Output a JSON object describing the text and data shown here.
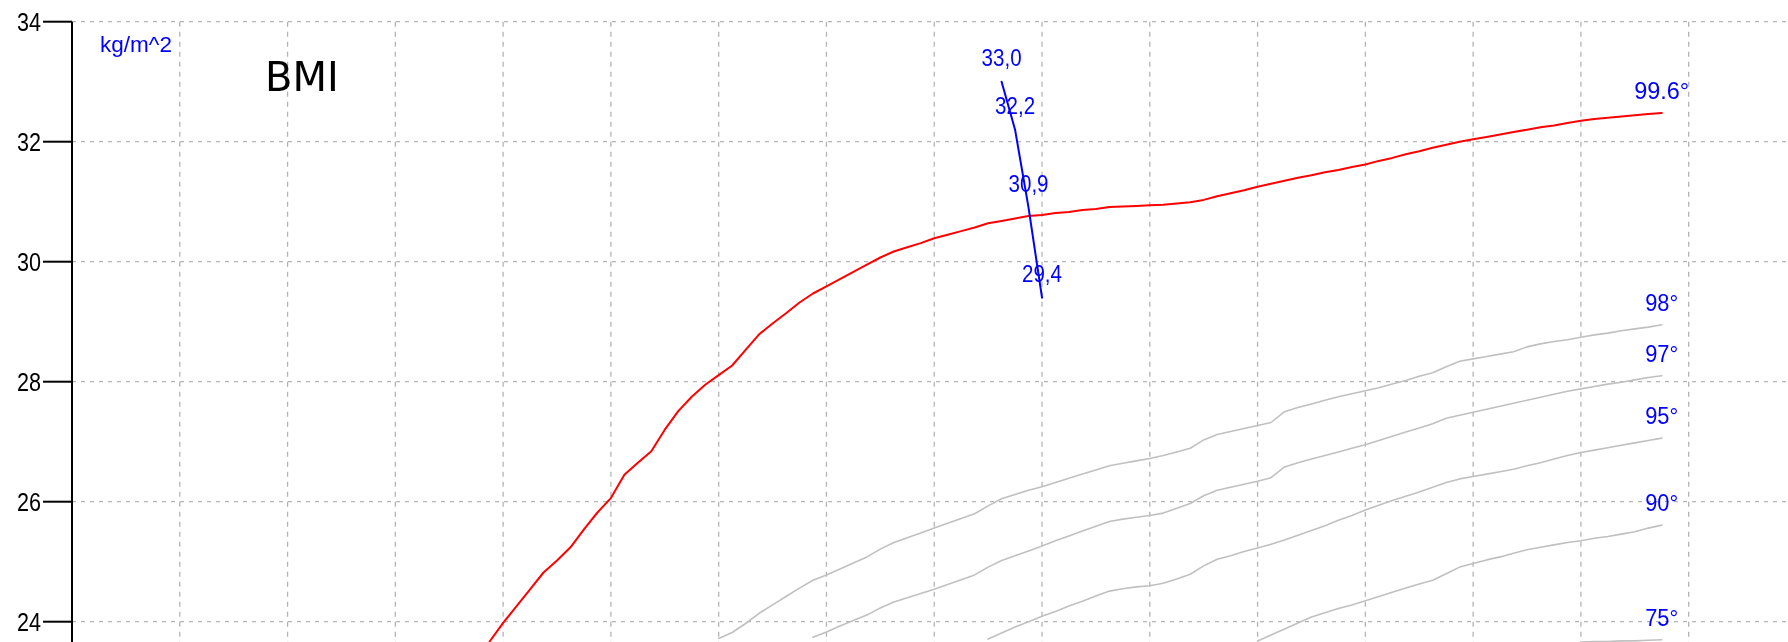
{
  "chart_data": {
    "type": "line",
    "title": "BMI",
    "ylabel": "kg/m^2",
    "ylim": [
      23.65,
      34
    ],
    "yticks": [
      24,
      26,
      28,
      30,
      32,
      34
    ],
    "grid": true,
    "marker": "none",
    "line_style": "solid",
    "categories": [
      null,
      null,
      null,
      null,
      null,
      null,
      null,
      null,
      null,
      null,
      null,
      null,
      null,
      null,
      null,
      null,
      null,
      null,
      null,
      null,
      null,
      null,
      null,
      null,
      null,
      null,
      null,
      null,
      null,
      null,
      null,
      null,
      null,
      null,
      null,
      null,
      null,
      null,
      null,
      null,
      null,
      null,
      null,
      null,
      null,
      null,
      null,
      null,
      null,
      null,
      null,
      null,
      null,
      null,
      null,
      null,
      null,
      null,
      null,
      null,
      null,
      null,
      null,
      null,
      null,
      null,
      null,
      null,
      null,
      null,
      null,
      null,
      null,
      null,
      null,
      null,
      null,
      null,
      null,
      null,
      null,
      null,
      null,
      null,
      null,
      null,
      null,
      null,
      null,
      null,
      null,
      null,
      null,
      null,
      null,
      null,
      null,
      null,
      null,
      null,
      null,
      null,
      null,
      null,
      null,
      null,
      null,
      null,
      null,
      null,
      null,
      null,
      null,
      null,
      null,
      null,
      null,
      null,
      null,
      null,
      null,
      null,
      null,
      null,
      null,
      null,
      null,
      null
    ],
    "series": [
      {
        "name": "99.6°",
        "color": "#ff0000",
        "values": [
          null,
          null,
          null,
          null,
          null,
          null,
          null,
          null,
          null,
          null,
          null,
          null,
          null,
          null,
          null,
          null,
          null,
          null,
          null,
          null,
          null,
          null,
          null,
          null,
          null,
          null,
          null,
          null,
          null,
          null,
          null,
          23.67,
          23.98,
          24.26,
          24.54,
          24.82,
          25.02,
          25.24,
          25.54,
          25.82,
          26.06,
          26.45,
          26.65,
          26.84,
          27.2,
          27.51,
          27.75,
          27.95,
          28.11,
          28.27,
          28.53,
          28.79,
          28.97,
          29.14,
          29.32,
          29.47,
          29.59,
          29.71,
          29.83,
          29.95,
          30.07,
          30.17,
          30.24,
          30.31,
          30.39,
          30.45,
          30.51,
          30.57,
          30.64,
          30.68,
          30.72,
          30.76,
          30.78,
          30.81,
          30.83,
          30.86,
          30.88,
          30.91,
          30.92,
          30.93,
          30.94,
          30.95,
          30.97,
          30.99,
          31.03,
          31.09,
          31.14,
          31.19,
          31.25,
          31.3,
          31.35,
          31.4,
          31.44,
          31.49,
          31.53,
          31.58,
          31.62,
          31.68,
          31.73,
          31.79,
          31.84,
          31.9,
          31.95,
          32.0,
          32.04,
          32.08,
          32.12,
          32.16,
          32.2,
          32.24,
          32.27,
          32.31,
          32.35,
          32.38,
          32.4,
          32.42,
          32.44,
          32.46,
          32.48,
          null,
          null,
          null,
          null,
          null,
          null,
          null,
          null,
          null
        ]
      },
      {
        "name": "98°",
        "color": "#c0c0c0",
        "values": [
          null,
          null,
          null,
          null,
          null,
          null,
          null,
          null,
          null,
          null,
          null,
          null,
          null,
          null,
          null,
          null,
          null,
          null,
          null,
          null,
          null,
          null,
          null,
          null,
          null,
          null,
          null,
          null,
          null,
          null,
          null,
          null,
          null,
          null,
          null,
          null,
          null,
          null,
          null,
          null,
          null,
          null,
          null,
          null,
          null,
          null,
          null,
          null,
          23.72,
          23.82,
          23.97,
          24.14,
          24.28,
          24.42,
          24.56,
          24.69,
          24.78,
          24.88,
          24.98,
          25.08,
          25.21,
          25.32,
          25.4,
          25.48,
          25.56,
          25.64,
          25.72,
          25.8,
          25.93,
          26.05,
          26.12,
          26.19,
          26.25,
          26.32,
          26.39,
          26.46,
          26.53,
          26.6,
          26.64,
          26.68,
          26.72,
          26.77,
          26.83,
          26.89,
          27.03,
          27.12,
          27.17,
          27.22,
          27.27,
          27.32,
          27.5,
          27.57,
          27.63,
          27.69,
          27.75,
          27.8,
          27.85,
          27.9,
          27.96,
          28.02,
          28.09,
          28.15,
          28.25,
          28.34,
          28.38,
          28.42,
          28.46,
          28.5,
          28.58,
          28.63,
          28.67,
          28.7,
          28.74,
          28.78,
          28.81,
          28.85,
          28.88,
          28.91,
          28.95,
          null,
          null,
          null,
          null,
          null,
          null,
          null,
          null,
          null
        ]
      },
      {
        "name": "97°",
        "color": "#c0c0c0",
        "values": [
          null,
          null,
          null,
          null,
          null,
          null,
          null,
          null,
          null,
          null,
          null,
          null,
          null,
          null,
          null,
          null,
          null,
          null,
          null,
          null,
          null,
          null,
          null,
          null,
          null,
          null,
          null,
          null,
          null,
          null,
          null,
          null,
          null,
          null,
          null,
          null,
          null,
          null,
          null,
          null,
          null,
          null,
          null,
          null,
          null,
          null,
          null,
          null,
          null,
          null,
          null,
          null,
          null,
          null,
          null,
          23.74,
          23.83,
          23.93,
          24.02,
          24.11,
          24.23,
          24.33,
          24.4,
          24.47,
          24.54,
          24.62,
          24.7,
          24.78,
          24.91,
          25.02,
          25.1,
          25.18,
          25.26,
          25.35,
          25.43,
          25.51,
          25.59,
          25.67,
          25.71,
          25.74,
          25.77,
          25.81,
          25.89,
          25.97,
          26.1,
          26.19,
          26.24,
          26.29,
          26.34,
          26.4,
          26.58,
          26.65,
          26.71,
          26.77,
          26.83,
          26.89,
          26.95,
          27.02,
          27.09,
          27.16,
          27.23,
          27.3,
          27.39,
          27.44,
          27.49,
          27.54,
          27.59,
          27.64,
          27.69,
          27.74,
          27.79,
          27.84,
          27.88,
          27.92,
          27.96,
          27.99,
          28.03,
          28.07,
          28.1,
          null,
          null,
          null,
          null,
          null,
          null,
          null,
          null,
          null
        ]
      },
      {
        "name": "95°",
        "color": "#c0c0c0",
        "values": [
          null,
          null,
          null,
          null,
          null,
          null,
          null,
          null,
          null,
          null,
          null,
          null,
          null,
          null,
          null,
          null,
          null,
          null,
          null,
          null,
          null,
          null,
          null,
          null,
          null,
          null,
          null,
          null,
          null,
          null,
          null,
          null,
          null,
          null,
          null,
          null,
          null,
          null,
          null,
          null,
          null,
          null,
          null,
          null,
          null,
          null,
          null,
          null,
          null,
          null,
          null,
          null,
          null,
          null,
          null,
          null,
          null,
          null,
          null,
          null,
          null,
          null,
          null,
          null,
          null,
          null,
          null,
          null,
          23.71,
          23.81,
          23.91,
          24.0,
          24.09,
          24.17,
          24.26,
          24.34,
          24.43,
          24.51,
          24.55,
          24.58,
          24.6,
          24.64,
          24.71,
          24.79,
          24.93,
          25.04,
          25.1,
          25.17,
          25.23,
          25.29,
          25.36,
          25.44,
          25.52,
          25.6,
          25.69,
          25.77,
          25.86,
          25.94,
          26.02,
          26.09,
          26.16,
          26.24,
          26.32,
          26.38,
          26.42,
          26.46,
          26.5,
          26.54,
          26.6,
          26.65,
          26.71,
          26.77,
          26.82,
          26.86,
          26.9,
          26.94,
          26.98,
          27.02,
          27.06,
          null,
          null,
          null,
          null,
          null,
          null,
          null,
          null,
          null
        ]
      },
      {
        "name": "90°",
        "color": "#c0c0c0",
        "values": [
          null,
          null,
          null,
          null,
          null,
          null,
          null,
          null,
          null,
          null,
          null,
          null,
          null,
          null,
          null,
          null,
          null,
          null,
          null,
          null,
          null,
          null,
          null,
          null,
          null,
          null,
          null,
          null,
          null,
          null,
          null,
          null,
          null,
          null,
          null,
          null,
          null,
          null,
          null,
          null,
          null,
          null,
          null,
          null,
          null,
          null,
          null,
          null,
          null,
          null,
          null,
          null,
          null,
          null,
          null,
          null,
          null,
          null,
          null,
          null,
          null,
          null,
          null,
          null,
          null,
          null,
          null,
          null,
          null,
          null,
          null,
          null,
          null,
          null,
          null,
          null,
          null,
          null,
          null,
          null,
          null,
          null,
          null,
          null,
          null,
          null,
          null,
          null,
          23.68,
          23.78,
          23.88,
          23.98,
          24.08,
          24.15,
          24.22,
          24.28,
          24.35,
          24.42,
          24.49,
          24.56,
          24.63,
          24.69,
          24.8,
          24.91,
          24.97,
          25.03,
          25.08,
          25.14,
          25.2,
          25.24,
          25.28,
          25.32,
          25.35,
          25.39,
          25.42,
          25.46,
          25.5,
          25.56,
          25.61,
          null,
          null,
          null,
          null,
          null,
          null,
          null,
          null,
          null
        ]
      },
      {
        "name": "75°",
        "color": "#c0c0c0",
        "values": [
          null,
          null,
          null,
          null,
          null,
          null,
          null,
          null,
          null,
          null,
          null,
          null,
          null,
          null,
          null,
          null,
          null,
          null,
          null,
          null,
          null,
          null,
          null,
          null,
          null,
          null,
          null,
          null,
          null,
          null,
          null,
          null,
          null,
          null,
          null,
          null,
          null,
          null,
          null,
          null,
          null,
          null,
          null,
          null,
          null,
          null,
          null,
          null,
          null,
          null,
          null,
          null,
          null,
          null,
          null,
          null,
          null,
          null,
          null,
          null,
          null,
          null,
          null,
          null,
          null,
          null,
          null,
          null,
          null,
          null,
          null,
          null,
          null,
          null,
          null,
          null,
          null,
          null,
          null,
          null,
          null,
          null,
          null,
          null,
          null,
          null,
          null,
          null,
          null,
          null,
          null,
          null,
          null,
          null,
          null,
          null,
          null,
          null,
          null,
          null,
          null,
          null,
          null,
          null,
          null,
          null,
          null,
          null,
          null,
          null,
          null,
          null,
          23.66,
          23.67,
          23.67,
          23.68,
          23.68,
          23.69,
          23.7,
          null,
          null,
          null,
          null,
          null,
          null,
          null,
          null,
          null
        ]
      },
      {
        "color": "#0000ff",
        "values": [
          null,
          null,
          null,
          null,
          null,
          null,
          null,
          null,
          null,
          null,
          null,
          null,
          null,
          null,
          null,
          null,
          null,
          null,
          null,
          null,
          null,
          null,
          null,
          null,
          null,
          null,
          null,
          null,
          null,
          null,
          null,
          null,
          null,
          null,
          null,
          null,
          null,
          null,
          null,
          null,
          null,
          null,
          null,
          null,
          null,
          null,
          null,
          null,
          null,
          null,
          null,
          null,
          null,
          null,
          null,
          null,
          null,
          null,
          null,
          null,
          null,
          null,
          null,
          null,
          null,
          null,
          null,
          null,
          null,
          33.0,
          32.2,
          30.9,
          29.4,
          null,
          null,
          null,
          null,
          null,
          null,
          null,
          null,
          null,
          null,
          null,
          null,
          null,
          null,
          null,
          null,
          null,
          null,
          null,
          null,
          null,
          null,
          null,
          null,
          null,
          null,
          null,
          null,
          null,
          null,
          null,
          null,
          null,
          null,
          null,
          null,
          null,
          null,
          null,
          null,
          null,
          null,
          null,
          null,
          null,
          null,
          null,
          null,
          null,
          null,
          null,
          null,
          null,
          null,
          null
        ],
        "value_labels": [
          null,
          null,
          null,
          null,
          null,
          null,
          null,
          null,
          null,
          null,
          null,
          null,
          null,
          null,
          null,
          null,
          null,
          null,
          null,
          null,
          null,
          null,
          null,
          null,
          null,
          null,
          null,
          null,
          null,
          null,
          null,
          null,
          null,
          null,
          null,
          null,
          null,
          null,
          null,
          null,
          null,
          null,
          null,
          null,
          null,
          null,
          null,
          null,
          null,
          null,
          null,
          null,
          null,
          null,
          null,
          null,
          null,
          null,
          null,
          null,
          null,
          null,
          null,
          null,
          null,
          null,
          null,
          null,
          null,
          "33,0",
          "32,2",
          "30,9",
          "29,4",
          null,
          null,
          null,
          null,
          null,
          null,
          null,
          null,
          null,
          null,
          null,
          null,
          null,
          null,
          null,
          null,
          null,
          null,
          null,
          null,
          null,
          null,
          null,
          null,
          null,
          null,
          null,
          null,
          null,
          null,
          null,
          null,
          null,
          null,
          null,
          null,
          null,
          null,
          null,
          null,
          null,
          null,
          null,
          null,
          null,
          null,
          null,
          null,
          null,
          null,
          null,
          null,
          null,
          null,
          null
        ]
      }
    ]
  }
}
